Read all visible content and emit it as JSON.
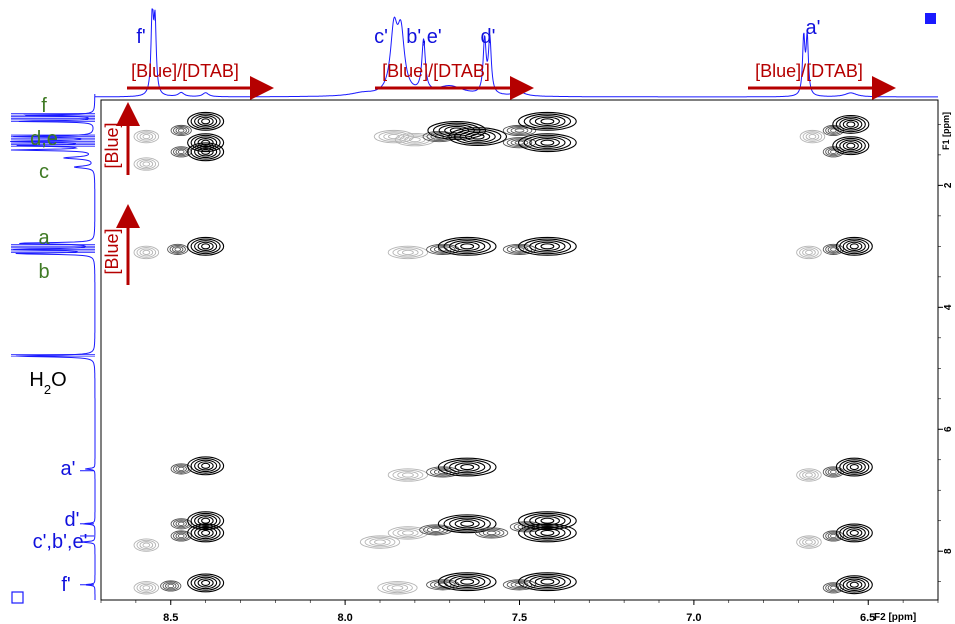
{
  "chart_data": {
    "type": "2D NMR contour plot",
    "x_axis": {
      "label": "F2 [ppm]",
      "range": [
        8.7,
        6.3
      ],
      "reversed": true,
      "ticks": [
        {
          "value": 8.5,
          "label": "8.5"
        },
        {
          "value": 8.0,
          "label": "8.0"
        },
        {
          "value": 7.5,
          "label": "7.5"
        },
        {
          "value": 7.0,
          "label": "7.0"
        },
        {
          "value": 6.5,
          "label": "6.5"
        }
      ]
    },
    "y_axis": {
      "label": "F1 [ppm]",
      "range": [
        0.6,
        8.8
      ],
      "reversed": true,
      "ticks": [
        {
          "value": 2,
          "label": "2"
        },
        {
          "value": 4,
          "label": "4"
        },
        {
          "value": 6,
          "label": "6"
        },
        {
          "value": 8,
          "label": "8"
        }
      ]
    },
    "top_peaks": [
      {
        "label": "f'",
        "ppm": 8.55
      },
      {
        "label": "c'",
        "ppm": 7.85
      },
      {
        "label": "b',e'",
        "ppm": 7.77
      },
      {
        "label": "d'",
        "ppm": 7.6
      },
      {
        "label": "a'",
        "ppm": 6.68
      }
    ],
    "left_peaks": [
      {
        "label": "f",
        "ppm": 0.9
      },
      {
        "label": "d,e",
        "ppm": 1.3
      },
      {
        "label": "c",
        "ppm": 1.7
      },
      {
        "label": "a",
        "ppm": 3.0
      },
      {
        "label": "b",
        "ppm": 3.2
      },
      {
        "label": "H2O",
        "ppm": 4.8
      },
      {
        "label": "a'",
        "ppm": 6.68
      },
      {
        "label": "c',b',e'",
        "ppm": 7.85
      },
      {
        "label": "d'",
        "ppm": 7.6
      },
      {
        "label": "f'",
        "ppm": 8.55
      }
    ],
    "arrows": [
      {
        "orientation": "horizontal",
        "label": "[Blue]/[DTAB]",
        "from": 8.6,
        "to": 8.2
      },
      {
        "orientation": "horizontal",
        "label": "[Blue]/[DTAB]",
        "from": 7.88,
        "to": 7.45
      },
      {
        "orientation": "horizontal",
        "label": "[Blue]/[DTAB]",
        "from": 6.86,
        "to": 6.42
      },
      {
        "orientation": "vertical",
        "label": "[Blue]",
        "from": 1.8,
        "to": 0.8
      },
      {
        "orientation": "vertical",
        "label": "[Blue]",
        "from": 3.25,
        "to": 2.25
      }
    ],
    "cross_peaks": [
      {
        "x": 8.57,
        "y": 1.2,
        "shade": "light"
      },
      {
        "x": 8.47,
        "y": 1.1,
        "shade": "mid"
      },
      {
        "x": 8.47,
        "y": 1.45,
        "shade": "mid"
      },
      {
        "x": 8.4,
        "y": 0.95,
        "shade": "dark"
      },
      {
        "x": 8.4,
        "y": 1.3,
        "shade": "dark"
      },
      {
        "x": 8.4,
        "y": 1.45,
        "shade": "dark"
      },
      {
        "x": 8.57,
        "y": 1.65,
        "shade": "light"
      },
      {
        "x": 7.86,
        "y": 1.2,
        "shade": "light"
      },
      {
        "x": 7.8,
        "y": 1.25,
        "shade": "light"
      },
      {
        "x": 7.73,
        "y": 1.2,
        "shade": "mid"
      },
      {
        "x": 7.68,
        "y": 1.1,
        "shade": "dark"
      },
      {
        "x": 7.62,
        "y": 1.2,
        "shade": "dark"
      },
      {
        "x": 7.5,
        "y": 1.1,
        "shade": "mid"
      },
      {
        "x": 7.5,
        "y": 1.3,
        "shade": "mid"
      },
      {
        "x": 7.42,
        "y": 0.95,
        "shade": "dark"
      },
      {
        "x": 7.42,
        "y": 1.3,
        "shade": "dark"
      },
      {
        "x": 6.66,
        "y": 1.2,
        "shade": "light"
      },
      {
        "x": 6.6,
        "y": 1.1,
        "shade": "mid"
      },
      {
        "x": 6.6,
        "y": 1.45,
        "shade": "mid"
      },
      {
        "x": 6.55,
        "y": 1.0,
        "shade": "dark"
      },
      {
        "x": 6.55,
        "y": 1.35,
        "shade": "dark"
      },
      {
        "x": 8.57,
        "y": 3.1,
        "shade": "light"
      },
      {
        "x": 8.48,
        "y": 3.05,
        "shade": "mid"
      },
      {
        "x": 8.4,
        "y": 3.0,
        "shade": "dark"
      },
      {
        "x": 7.82,
        "y": 3.1,
        "shade": "light"
      },
      {
        "x": 7.72,
        "y": 3.05,
        "shade": "mid"
      },
      {
        "x": 7.65,
        "y": 3.0,
        "shade": "dark"
      },
      {
        "x": 7.5,
        "y": 3.05,
        "shade": "mid"
      },
      {
        "x": 7.42,
        "y": 3.0,
        "shade": "dark"
      },
      {
        "x": 6.67,
        "y": 3.1,
        "shade": "light"
      },
      {
        "x": 6.6,
        "y": 3.05,
        "shade": "mid"
      },
      {
        "x": 6.54,
        "y": 3.0,
        "shade": "dark"
      },
      {
        "x": 8.47,
        "y": 6.65,
        "shade": "mid"
      },
      {
        "x": 8.4,
        "y": 6.6,
        "shade": "dark"
      },
      {
        "x": 7.82,
        "y": 6.75,
        "shade": "light"
      },
      {
        "x": 7.72,
        "y": 6.7,
        "shade": "mid"
      },
      {
        "x": 7.65,
        "y": 6.62,
        "shade": "dark"
      },
      {
        "x": 6.67,
        "y": 6.75,
        "shade": "light"
      },
      {
        "x": 6.6,
        "y": 6.7,
        "shade": "mid"
      },
      {
        "x": 6.54,
        "y": 6.62,
        "shade": "dark"
      },
      {
        "x": 8.47,
        "y": 7.55,
        "shade": "mid"
      },
      {
        "x": 8.47,
        "y": 7.75,
        "shade": "mid"
      },
      {
        "x": 8.4,
        "y": 7.5,
        "shade": "dark"
      },
      {
        "x": 8.4,
        "y": 7.7,
        "shade": "dark"
      },
      {
        "x": 8.57,
        "y": 7.9,
        "shade": "light"
      },
      {
        "x": 7.9,
        "y": 7.85,
        "shade": "light"
      },
      {
        "x": 7.82,
        "y": 7.7,
        "shade": "light"
      },
      {
        "x": 7.74,
        "y": 7.65,
        "shade": "mid"
      },
      {
        "x": 7.65,
        "y": 7.55,
        "shade": "dark"
      },
      {
        "x": 7.58,
        "y": 7.7,
        "shade": "mid"
      },
      {
        "x": 7.48,
        "y": 7.6,
        "shade": "mid"
      },
      {
        "x": 7.42,
        "y": 7.5,
        "shade": "dark"
      },
      {
        "x": 7.42,
        "y": 7.7,
        "shade": "dark"
      },
      {
        "x": 6.67,
        "y": 7.85,
        "shade": "light"
      },
      {
        "x": 6.6,
        "y": 7.75,
        "shade": "mid"
      },
      {
        "x": 6.54,
        "y": 7.7,
        "shade": "dark"
      },
      {
        "x": 8.57,
        "y": 8.6,
        "shade": "light"
      },
      {
        "x": 8.5,
        "y": 8.57,
        "shade": "mid"
      },
      {
        "x": 8.4,
        "y": 8.52,
        "shade": "dark"
      },
      {
        "x": 7.85,
        "y": 8.6,
        "shade": "light"
      },
      {
        "x": 7.72,
        "y": 8.55,
        "shade": "mid"
      },
      {
        "x": 7.65,
        "y": 8.5,
        "shade": "dark"
      },
      {
        "x": 7.5,
        "y": 8.55,
        "shade": "mid"
      },
      {
        "x": 7.42,
        "y": 8.5,
        "shade": "dark"
      },
      {
        "x": 6.6,
        "y": 8.6,
        "shade": "mid"
      },
      {
        "x": 6.54,
        "y": 8.55,
        "shade": "dark"
      }
    ],
    "colors": {
      "arrow": "#b50000",
      "projection": "#1a1aff",
      "label_left_aliphatic": "#3f7a24",
      "label_blue": "#1010dd",
      "dark": "#000000",
      "mid": "#555555",
      "light": "#b4b4b4"
    }
  }
}
